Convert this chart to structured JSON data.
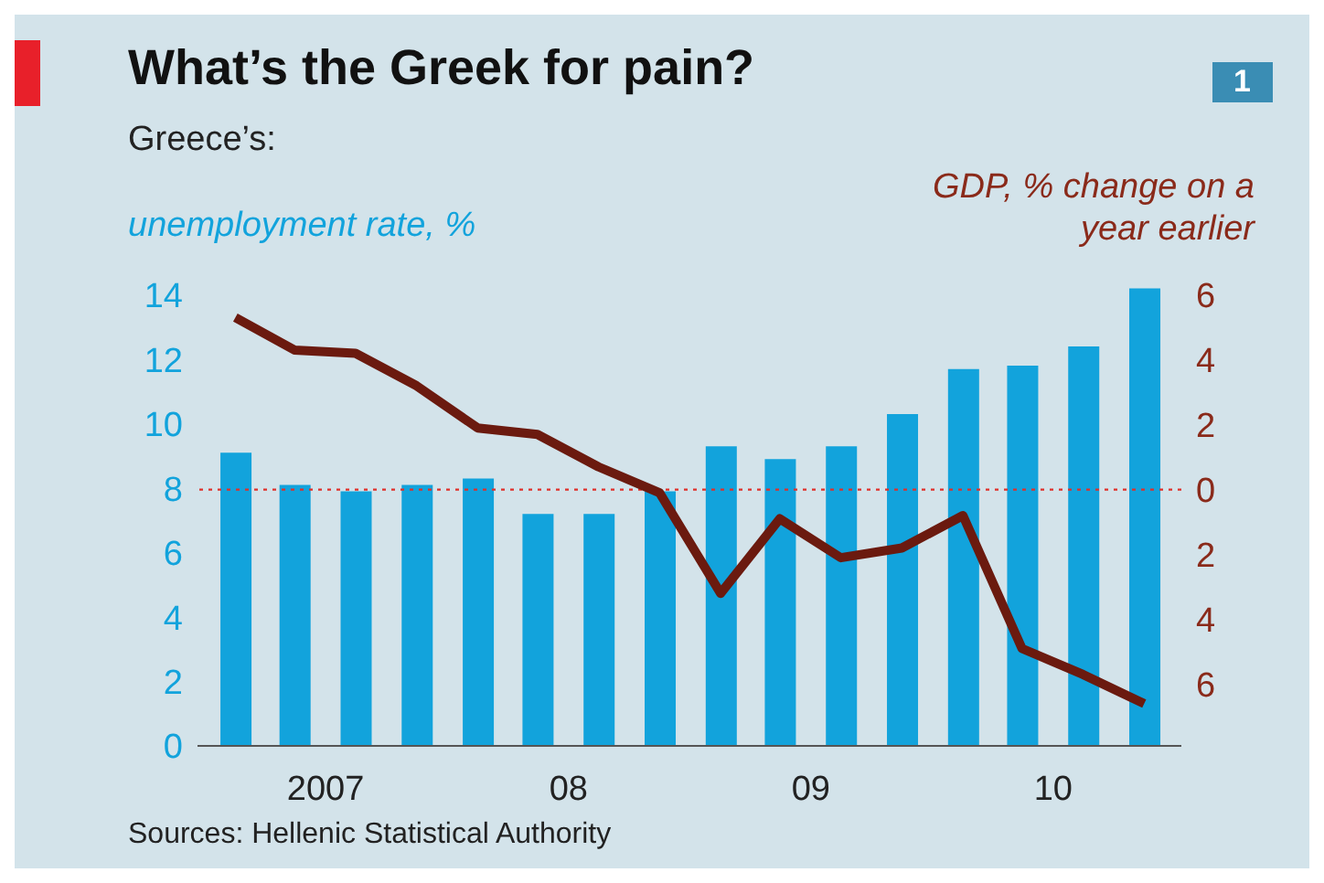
{
  "chart_data": {
    "type": "bar",
    "title": "What’s the Greek for pain?",
    "subtitle": "Greece’s:",
    "ylabel": "unemployment rate, %",
    "y2label": "GDP, % change on a year earlier",
    "x": [
      "2007-02-15",
      "2007-05-15",
      "2007-08-15",
      "2007-11-15",
      "2008-02-15",
      "2008-05-15",
      "2008-08-15",
      "2008-11-15",
      "2009-02-15",
      "2009-05-15",
      "2009-08-15",
      "2009-11-15",
      "2010-02-15",
      "2010-05-15",
      "2010-08-15",
      "2010-11-15"
    ],
    "xlim": [
      "2006-12-20",
      "2011-01-10"
    ],
    "xticks": [
      {
        "value": "2007-07-01",
        "label": "2007"
      },
      {
        "value": "2008-07-01",
        "label": "08"
      },
      {
        "value": "2009-07-01",
        "label": "09"
      },
      {
        "value": "2010-07-01",
        "label": "10"
      }
    ],
    "series": [
      {
        "name": null,
        "color": "#12a3dc",
        "values": [
          9.1,
          8.1,
          7.9,
          8.1,
          8.3,
          7.2,
          7.2,
          7.9,
          9.3,
          8.9,
          9.3,
          10.3,
          11.7,
          11.8,
          12.4,
          14.2
        ]
      },
      {
        "name": null,
        "type": "line",
        "axis": "y2",
        "color": "#6b1a0f",
        "values": [
          5.3,
          4.3,
          4.2,
          3.2,
          1.9,
          1.7,
          0.7,
          -0.1,
          -3.2,
          -0.9,
          -2.1,
          -1.8,
          -0.8,
          -4.9,
          -5.7,
          -6.6
        ]
      }
    ],
    "ylim": [
      0,
      14.3
    ],
    "yticks": [
      0,
      2,
      4,
      6,
      8,
      10,
      12,
      14
    ],
    "y2lim": [
      -7.9,
      6.3
    ],
    "y2ticks": [
      6,
      4,
      2,
      {
        "value": 0,
        "label": "0"
      },
      {
        "value": -2,
        "label": "2"
      },
      {
        "value": -4,
        "label": "4"
      },
      {
        "value": -6,
        "label": "6"
      }
    ],
    "ref_lines": [
      {
        "axis": "y2",
        "value": 0,
        "label": null,
        "color": "#e0302a",
        "line_style": "dotted"
      }
    ],
    "annotations": [
      "1",
      "Sources: Hellenic Statistical Authority"
    ],
    "grid": false,
    "legend": false
  }
}
